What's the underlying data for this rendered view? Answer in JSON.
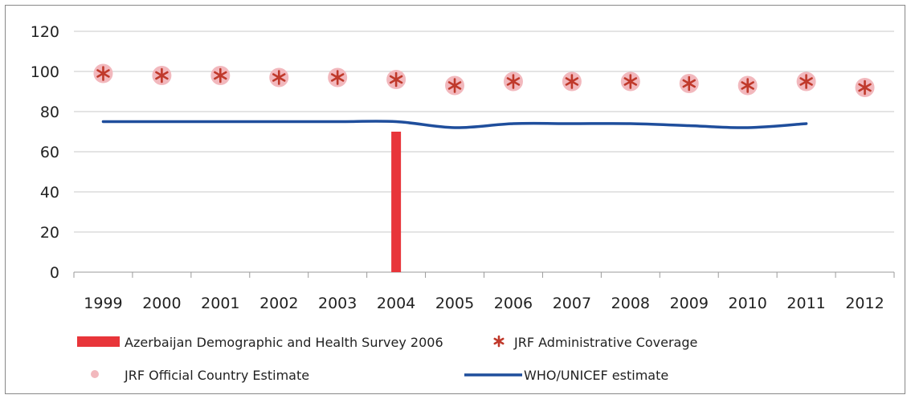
{
  "chart_data": {
    "type": "line",
    "title": "",
    "xlabel": "",
    "ylabel": "",
    "categories": [
      "1999",
      "2000",
      "2001",
      "2002",
      "2003",
      "2004",
      "2005",
      "2006",
      "2007",
      "2008",
      "2009",
      "2010",
      "2011",
      "2012"
    ],
    "ylim": [
      0,
      120
    ],
    "yticks": [
      "0",
      "20",
      "40",
      "60",
      "80",
      "100",
      "120"
    ],
    "grid": true,
    "legend_position": "bottom",
    "series": [
      {
        "name": "Azerbaijan Demographic and Health Survey 2006",
        "kind": "bar",
        "color": "#e8353a",
        "values": [
          null,
          null,
          null,
          null,
          null,
          70,
          null,
          null,
          null,
          null,
          null,
          null,
          null,
          null
        ]
      },
      {
        "name": "JRF Administrative Coverage",
        "kind": "asterisk",
        "color": "#c0392b",
        "values": [
          99,
          98,
          98,
          97,
          97,
          96,
          93,
          95,
          95,
          95,
          94,
          93,
          95,
          92
        ]
      },
      {
        "name": "JRF Official Country Estimate",
        "kind": "dot",
        "color": "#f2b8bd",
        "values": [
          99,
          98,
          98,
          97,
          97,
          96,
          93,
          95,
          95,
          95,
          94,
          93,
          95,
          92
        ]
      },
      {
        "name": "WHO/UNICEF estimate",
        "kind": "line",
        "color": "#1f4e9c",
        "values": [
          75,
          75,
          75,
          75,
          75,
          75,
          72,
          74,
          74,
          74,
          73,
          72,
          74,
          null
        ]
      }
    ]
  }
}
